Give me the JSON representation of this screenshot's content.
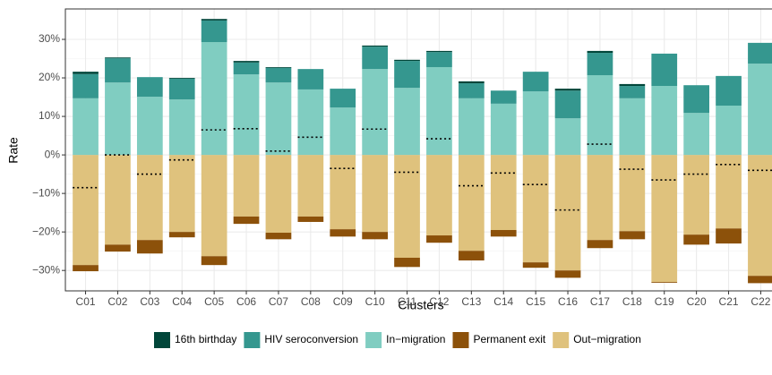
{
  "chart_data": {
    "type": "bar",
    "x_label": "Clusters",
    "y_label": "Rate",
    "categories": [
      "C01",
      "C02",
      "C03",
      "C04",
      "C05",
      "C06",
      "C07",
      "C08",
      "C09",
      "C10",
      "C11",
      "C12",
      "C13",
      "C14",
      "C15",
      "C16",
      "C17",
      "C18",
      "C19",
      "C20",
      "C21",
      "C22"
    ],
    "series": [
      {
        "name": "16th birthday",
        "color": "#01463a",
        "values": [
          0.6,
          0.2,
          0,
          0.2,
          0.4,
          0.4,
          0.2,
          0,
          0,
          0.3,
          0.3,
          0.3,
          0.5,
          0,
          0,
          0.5,
          0.5,
          0.5,
          0,
          0,
          0,
          0
        ]
      },
      {
        "name": "HIV seroconversion",
        "color": "#35978f",
        "values": [
          6.3,
          6.3,
          5.1,
          5.4,
          5.6,
          3.1,
          3.8,
          5.3,
          4.9,
          5.8,
          7,
          3.9,
          3.9,
          3.4,
          5.1,
          7.2,
          5.8,
          3.2,
          8.4,
          7.2,
          7.7,
          5.4
        ]
      },
      {
        "name": "In−migration",
        "color": "#80cdc1",
        "values": [
          14.7,
          18.8,
          15.1,
          14.4,
          29.3,
          20.9,
          18.8,
          17,
          12.3,
          22.3,
          17.4,
          22.8,
          14.7,
          13.3,
          16.5,
          9.5,
          20.7,
          14.7,
          17.9,
          10.9,
          12.8,
          23.7
        ]
      },
      {
        "name": "Permanent exit",
        "color": "#8c510a",
        "values": [
          -1.6,
          -1.8,
          -3.5,
          -1.4,
          -2.3,
          -1.9,
          -1.7,
          -1.4,
          -1.9,
          -1.9,
          -2.4,
          -1.9,
          -2.5,
          -1.7,
          -1.4,
          -1.9,
          -2.1,
          -2.1,
          -0.2,
          -2.6,
          -3.9,
          -1.9
        ]
      },
      {
        "name": "Out−migration",
        "color": "#dfc27d",
        "values": [
          -28.6,
          -23.3,
          -22.1,
          -20,
          -26.3,
          -16,
          -20.2,
          -16,
          -19.3,
          -20,
          -26.7,
          -20.9,
          -24.9,
          -19.5,
          -27.9,
          -30,
          -22.1,
          -19.8,
          -33,
          -20.7,
          -19.1,
          -31.4
        ]
      }
    ],
    "net": [
      -8.5,
      0,
      -5,
      -1.3,
      6.5,
      6.8,
      1,
      4.6,
      -3.5,
      6.7,
      -4.5,
      4.2,
      -8,
      -4.7,
      -7.7,
      -14.3,
      2.8,
      -3.7,
      -6.5,
      -5,
      -2.5,
      -4
    ],
    "ylim": [
      -35.3,
      37.9
    ],
    "yticks": [
      {
        "value": -30,
        "label": "−30%"
      },
      {
        "value": -20,
        "label": "−20%"
      },
      {
        "value": -10,
        "label": "−10%"
      },
      {
        "value": 0,
        "label": "0%"
      },
      {
        "value": 10,
        "label": "10%"
      },
      {
        "value": 20,
        "label": "20%"
      },
      {
        "value": 30,
        "label": "30%"
      }
    ],
    "grid": true,
    "legend": "bottom"
  }
}
